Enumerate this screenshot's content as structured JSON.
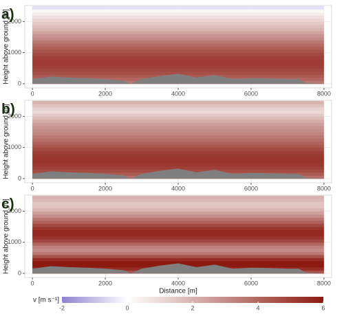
{
  "chart_data": [
    {
      "type": "heatmap",
      "label": "a)",
      "ylabel": "Height above ground [m]",
      "xlim": [
        -210,
        8210
      ],
      "ylim": [
        -135,
        2517
      ],
      "xticks": [
        0,
        2000,
        4000,
        6000,
        8000
      ],
      "yticks": [
        0,
        1000,
        2000
      ],
      "heights": [
        0,
        100,
        200,
        300,
        400,
        500,
        600,
        700,
        800,
        900,
        1000,
        1100,
        1200,
        1300,
        1400,
        1500,
        1600,
        1700,
        1800,
        1900,
        2000,
        2100,
        2200,
        2300,
        2400
      ],
      "values": [
        3.5,
        4,
        4.3,
        4.6,
        4.8,
        5,
        5.1,
        5.1,
        5,
        4.8,
        4.5,
        4.2,
        3.9,
        3.5,
        3.1,
        2.8,
        2.4,
        2,
        1.7,
        1.4,
        1.1,
        0.8,
        0.5,
        0.2,
        -0.5
      ],
      "terrain_x": [
        0,
        500,
        1000,
        1500,
        2000,
        2500,
        2700,
        3000,
        3500,
        4000,
        4500,
        5000,
        5500,
        6000,
        6500,
        7000,
        7300,
        7500,
        8000
      ],
      "terrain_y": [
        150,
        230,
        200,
        180,
        150,
        100,
        0,
        150,
        250,
        320,
        200,
        280,
        150,
        180,
        170,
        150,
        150,
        30,
        0
      ]
    },
    {
      "type": "heatmap",
      "label": "b)",
      "ylabel": "Height above ground [m]",
      "xlim": [
        -210,
        8210
      ],
      "ylim": [
        -135,
        2517
      ],
      "xticks": [
        0,
        2000,
        4000,
        6000,
        8000
      ],
      "yticks": [
        0,
        1000,
        2000
      ],
      "heights": [
        0,
        100,
        200,
        300,
        400,
        500,
        600,
        700,
        800,
        900,
        1000,
        1100,
        1200,
        1300,
        1400,
        1500,
        1600,
        1700,
        1800,
        1900,
        2000,
        2100,
        2200,
        2300,
        2400
      ],
      "values": [
        3.8,
        4.3,
        4.7,
        5,
        5.2,
        5.3,
        5.3,
        5.2,
        5,
        4.7,
        4.4,
        4.1,
        3.8,
        3.5,
        3.2,
        3,
        2.8,
        2.5,
        2.2,
        1.8,
        1.4,
        1,
        1.2,
        1.6,
        2
      ],
      "terrain_x": [
        0,
        500,
        1000,
        1500,
        2000,
        2500,
        2700,
        3000,
        3500,
        4000,
        4500,
        5000,
        5500,
        6000,
        6500,
        7000,
        7300,
        7500,
        8000
      ],
      "terrain_y": [
        150,
        230,
        200,
        180,
        150,
        100,
        0,
        150,
        250,
        320,
        200,
        280,
        150,
        180,
        170,
        150,
        150,
        30,
        0
      ]
    },
    {
      "type": "heatmap",
      "label": "c)",
      "ylabel": "Height above ground [m]",
      "xlabel": "Distance [m]",
      "xlim": [
        -210,
        8210
      ],
      "ylim": [
        -135,
        2517
      ],
      "xticks": [
        0,
        2000,
        4000,
        6000,
        8000
      ],
      "yticks": [
        0,
        1000,
        2000
      ],
      "heights": [
        0,
        100,
        200,
        300,
        400,
        500,
        600,
        700,
        800,
        900,
        1000,
        1100,
        1200,
        1300,
        1400,
        1500,
        1600,
        1700,
        1800,
        1900,
        2000,
        2100,
        2200,
        2300,
        2400
      ],
      "values": [
        4.5,
        5.5,
        6,
        6,
        5.5,
        4.5,
        3.5,
        3,
        3.3,
        4,
        4.8,
        5.3,
        5.6,
        5.6,
        5.3,
        4.8,
        4.2,
        3.6,
        3,
        2.5,
        2,
        1.6,
        1.5,
        1.8,
        2
      ],
      "terrain_x": [
        0,
        500,
        1000,
        1500,
        2000,
        2500,
        2700,
        3000,
        3500,
        4000,
        4500,
        5000,
        5500,
        6000,
        6500,
        7000,
        7300,
        7500,
        8000
      ],
      "terrain_y": [
        150,
        230,
        200,
        180,
        150,
        100,
        0,
        150,
        250,
        320,
        200,
        280,
        150,
        180,
        170,
        150,
        150,
        30,
        0
      ]
    }
  ],
  "colorbar": {
    "label": "v [m s⁻¹]",
    "lim": [
      -2,
      6
    ],
    "ticks": [
      -2,
      0,
      2,
      4,
      6
    ],
    "stops": [
      -2,
      0,
      6
    ],
    "colors": [
      "#8e82d0",
      "#ffffff",
      "#8b1a10"
    ]
  }
}
